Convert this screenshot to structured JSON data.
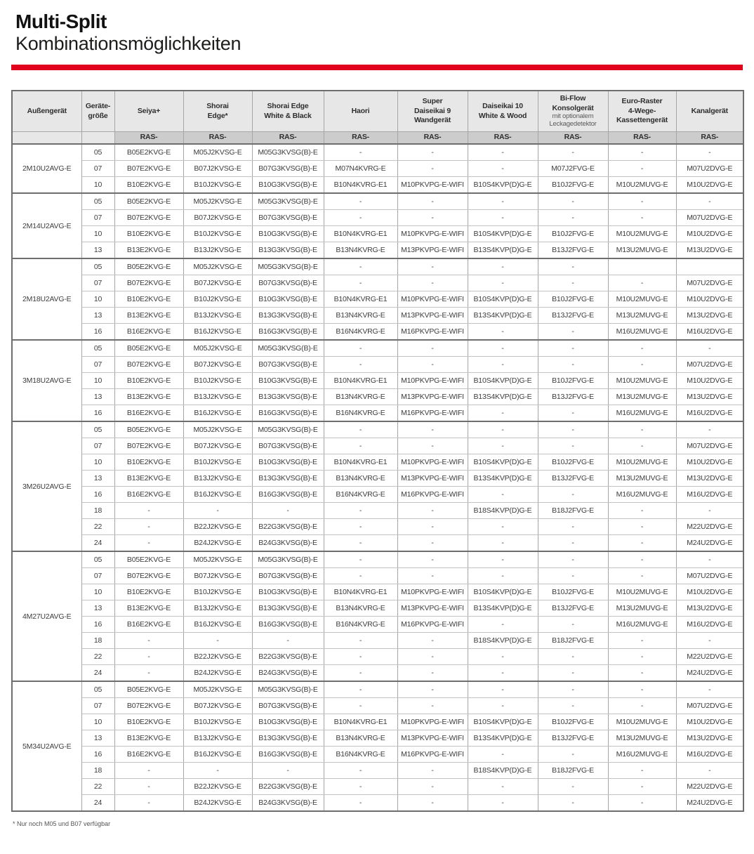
{
  "page": {
    "title": "Multi-Split",
    "subtitle": "Kombinationsmöglichkeiten",
    "footnote": "* Nur noch M05 und B07 verfügbar",
    "accent_color": "#e2001a",
    "header_bg": "#e7e7e7",
    "subheader_bg": "#cccccc"
  },
  "table": {
    "columns": [
      {
        "label": "Außengerät",
        "sub": ""
      },
      {
        "label": "Geräte-\ngröße",
        "sub": ""
      },
      {
        "label": "Seiya+",
        "sub": "RAS-"
      },
      {
        "label": "Shorai\nEdge*",
        "sub": "RAS-"
      },
      {
        "label": "Shorai Edge\nWhite & Black",
        "sub": "RAS-"
      },
      {
        "label": "Haori",
        "sub": "RAS-"
      },
      {
        "label": "Super\nDaiseikai 9\nWandgerät",
        "sub": "RAS-"
      },
      {
        "label": "Daiseikai 10\nWhite & Wood",
        "sub": "RAS-"
      },
      {
        "label": "Bi-Flow\nKonsolgerät",
        "note": "mit optionalem\nLeckagedetektor",
        "sub": "RAS-"
      },
      {
        "label": "Euro-Raster\n4-Wege-\nKassettengerät",
        "sub": "RAS-"
      },
      {
        "label": "Kanalgerät",
        "sub": "RAS-"
      }
    ],
    "groups": [
      {
        "outdoor_unit": "2M10U2AVG-E",
        "rows": [
          {
            "size": "05",
            "cells": [
              "B05E2KVG-E",
              "M05J2KVSG-E",
              "M05G3KVSG(B)-E",
              "-",
              "-",
              "-",
              "-",
              "-",
              "-"
            ]
          },
          {
            "size": "07",
            "cells": [
              "B07E2KVG-E",
              "B07J2KVSG-E",
              "B07G3KVSG(B)-E",
              "M07N4KVRG-E",
              "-",
              "-",
              "M07J2FVG-E",
              "-",
              "M07U2DVG-E"
            ]
          },
          {
            "size": "10",
            "cells": [
              "B10E2KVG-E",
              "B10J2KVSG-E",
              "B10G3KVSG(B)-E",
              "B10N4KVRG-E1",
              "M10PKVPG-E-WIFI",
              "B10S4KVP(D)G-E",
              "B10J2FVG-E",
              "M10U2MUVG-E",
              "M10U2DVG-E"
            ]
          }
        ]
      },
      {
        "outdoor_unit": "2M14U2AVG-E",
        "rows": [
          {
            "size": "05",
            "cells": [
              "B05E2KVG-E",
              "M05J2KVSG-E",
              "M05G3KVSG(B)-E",
              "-",
              "-",
              "-",
              "-",
              "-",
              "-"
            ]
          },
          {
            "size": "07",
            "cells": [
              "B07E2KVG-E",
              "B07J2KVSG-E",
              "B07G3KVSG(B)-E",
              "-",
              "-",
              "-",
              "-",
              "-",
              "M07U2DVG-E"
            ]
          },
          {
            "size": "10",
            "cells": [
              "B10E2KVG-E",
              "B10J2KVSG-E",
              "B10G3KVSG(B)-E",
              "B10N4KVRG-E1",
              "M10PKVPG-E-WIFI",
              "B10S4KVP(D)G-E",
              "B10J2FVG-E",
              "M10U2MUVG-E",
              "M10U2DVG-E"
            ]
          },
          {
            "size": "13",
            "cells": [
              "B13E2KVG-E",
              "B13J2KVSG-E",
              "B13G3KVSG(B)-E",
              "B13N4KVRG-E",
              "M13PKVPG-E-WIFI",
              "B13S4KVP(D)G-E",
              "B13J2FVG-E",
              "M13U2MUVG-E",
              "M13U2DVG-E"
            ]
          }
        ]
      },
      {
        "outdoor_unit": "2M18U2AVG-E",
        "rows": [
          {
            "size": "05",
            "cells": [
              "B05E2KVG-E",
              "M05J2KVSG-E",
              "M05G3KVSG(B)-E",
              "-",
              "-",
              "-",
              "-",
              "",
              ""
            ]
          },
          {
            "size": "07",
            "cells": [
              "B07E2KVG-E",
              "B07J2KVSG-E",
              "B07G3KVSG(B)-E",
              "-",
              "-",
              "-",
              "-",
              "-",
              "M07U2DVG-E"
            ]
          },
          {
            "size": "10",
            "cells": [
              "B10E2KVG-E",
              "B10J2KVSG-E",
              "B10G3KVSG(B)-E",
              "B10N4KVRG-E1",
              "M10PKVPG-E-WIFI",
              "B10S4KVP(D)G-E",
              "B10J2FVG-E",
              "M10U2MUVG-E",
              "M10U2DVG-E"
            ]
          },
          {
            "size": "13",
            "cells": [
              "B13E2KVG-E",
              "B13J2KVSG-E",
              "B13G3KVSG(B)-E",
              "B13N4KVRG-E",
              "M13PKVPG-E-WIFI",
              "B13S4KVP(D)G-E",
              "B13J2FVG-E",
              "M13U2MUVG-E",
              "M13U2DVG-E"
            ]
          },
          {
            "size": "16",
            "cells": [
              "B16E2KVG-E",
              "B16J2KVSG-E",
              "B16G3KVSG(B)-E",
              "B16N4KVRG-E",
              "M16PKVPG-E-WIFI",
              "-",
              "-",
              "M16U2MUVG-E",
              "M16U2DVG-E"
            ]
          }
        ]
      },
      {
        "outdoor_unit": "3M18U2AVG-E",
        "rows": [
          {
            "size": "05",
            "cells": [
              "B05E2KVG-E",
              "M05J2KVSG-E",
              "M05G3KVSG(B)-E",
              "-",
              "-",
              "-",
              "-",
              "-",
              "-"
            ]
          },
          {
            "size": "07",
            "cells": [
              "B07E2KVG-E",
              "B07J2KVSG-E",
              "B07G3KVSG(B)-E",
              "-",
              "-",
              "-",
              "-",
              "-",
              "M07U2DVG-E"
            ]
          },
          {
            "size": "10",
            "cells": [
              "B10E2KVG-E",
              "B10J2KVSG-E",
              "B10G3KVSG(B)-E",
              "B10N4KVRG-E1",
              "M10PKVPG-E-WIFI",
              "B10S4KVP(D)G-E",
              "B10J2FVG-E",
              "M10U2MUVG-E",
              "M10U2DVG-E"
            ]
          },
          {
            "size": "13",
            "cells": [
              "B13E2KVG-E",
              "B13J2KVSG-E",
              "B13G3KVSG(B)-E",
              "B13N4KVRG-E",
              "M13PKVPG-E-WIFI",
              "B13S4KVP(D)G-E",
              "B13J2FVG-E",
              "M13U2MUVG-E",
              "M13U2DVG-E"
            ]
          },
          {
            "size": "16",
            "cells": [
              "B16E2KVG-E",
              "B16J2KVSG-E",
              "B16G3KVSG(B)-E",
              "B16N4KVRG-E",
              "M16PKVPG-E-WIFI",
              "-",
              "-",
              "M16U2MUVG-E",
              "M16U2DVG-E"
            ]
          }
        ]
      },
      {
        "outdoor_unit": "3M26U2AVG-E",
        "rows": [
          {
            "size": "05",
            "cells": [
              "B05E2KVG-E",
              "M05J2KVSG-E",
              "M05G3KVSG(B)-E",
              "-",
              "-",
              "-",
              "-",
              "-",
              "-"
            ]
          },
          {
            "size": "07",
            "cells": [
              "B07E2KVG-E",
              "B07J2KVSG-E",
              "B07G3KVSG(B)-E",
              "-",
              "-",
              "-",
              "-",
              "-",
              "M07U2DVG-E"
            ]
          },
          {
            "size": "10",
            "cells": [
              "B10E2KVG-E",
              "B10J2KVSG-E",
              "B10G3KVSG(B)-E",
              "B10N4KVRG-E1",
              "M10PKVPG-E-WIFI",
              "B10S4KVP(D)G-E",
              "B10J2FVG-E",
              "M10U2MUVG-E",
              "M10U2DVG-E"
            ]
          },
          {
            "size": "13",
            "cells": [
              "B13E2KVG-E",
              "B13J2KVSG-E",
              "B13G3KVSG(B)-E",
              "B13N4KVRG-E",
              "M13PKVPG-E-WIFI",
              "B13S4KVP(D)G-E",
              "B13J2FVG-E",
              "M13U2MUVG-E",
              "M13U2DVG-E"
            ]
          },
          {
            "size": "16",
            "cells": [
              "B16E2KVG-E",
              "B16J2KVSG-E",
              "B16G3KVSG(B)-E",
              "B16N4KVRG-E",
              "M16PKVPG-E-WIFI",
              "-",
              "-",
              "M16U2MUVG-E",
              "M16U2DVG-E"
            ]
          },
          {
            "size": "18",
            "cells": [
              "-",
              "-",
              "-",
              "-",
              "-",
              "B18S4KVP(D)G-E",
              "B18J2FVG-E",
              "-",
              "-"
            ]
          },
          {
            "size": "22",
            "cells": [
              "-",
              "B22J2KVSG-E",
              "B22G3KVSG(B)-E",
              "-",
              "-",
              "-",
              "-",
              "-",
              "M22U2DVG-E"
            ]
          },
          {
            "size": "24",
            "cells": [
              "-",
              "B24J2KVSG-E",
              "B24G3KVSG(B)-E",
              "-",
              "-",
              "-",
              "-",
              "-",
              "M24U2DVG-E"
            ]
          }
        ]
      },
      {
        "outdoor_unit": "4M27U2AVG-E",
        "rows": [
          {
            "size": "05",
            "cells": [
              "B05E2KVG-E",
              "M05J2KVSG-E",
              "M05G3KVSG(B)-E",
              "-",
              "-",
              "-",
              "-",
              "-",
              "-"
            ]
          },
          {
            "size": "07",
            "cells": [
              "B07E2KVG-E",
              "B07J2KVSG-E",
              "B07G3KVSG(B)-E",
              "-",
              "-",
              "-",
              "-",
              "-",
              "M07U2DVG-E"
            ]
          },
          {
            "size": "10",
            "cells": [
              "B10E2KVG-E",
              "B10J2KVSG-E",
              "B10G3KVSG(B)-E",
              "B10N4KVRG-E1",
              "M10PKVPG-E-WIFI",
              "B10S4KVP(D)G-E",
              "B10J2FVG-E",
              "M10U2MUVG-E",
              "M10U2DVG-E"
            ]
          },
          {
            "size": "13",
            "cells": [
              "B13E2KVG-E",
              "B13J2KVSG-E",
              "B13G3KVSG(B)-E",
              "B13N4KVRG-E",
              "M13PKVPG-E-WIFI",
              "B13S4KVP(D)G-E",
              "B13J2FVG-E",
              "M13U2MUVG-E",
              "M13U2DVG-E"
            ]
          },
          {
            "size": "16",
            "cells": [
              "B16E2KVG-E",
              "B16J2KVSG-E",
              "B16G3KVSG(B)-E",
              "B16N4KVRG-E",
              "M16PKVPG-E-WIFI",
              "-",
              "-",
              "M16U2MUVG-E",
              "M16U2DVG-E"
            ]
          },
          {
            "size": "18",
            "cells": [
              "-",
              "-",
              "-",
              "-",
              "-",
              "B18S4KVP(D)G-E",
              "B18J2FVG-E",
              "-",
              "-"
            ]
          },
          {
            "size": "22",
            "cells": [
              "-",
              "B22J2KVSG-E",
              "B22G3KVSG(B)-E",
              "-",
              "-",
              "-",
              "-",
              "-",
              "M22U2DVG-E"
            ]
          },
          {
            "size": "24",
            "cells": [
              "-",
              "B24J2KVSG-E",
              "B24G3KVSG(B)-E",
              "-",
              "-",
              "-",
              "-",
              "-",
              "M24U2DVG-E"
            ]
          }
        ]
      },
      {
        "outdoor_unit": "5M34U2AVG-E",
        "rows": [
          {
            "size": "05",
            "cells": [
              "B05E2KVG-E",
              "M05J2KVSG-E",
              "M05G3KVSG(B)-E",
              "-",
              "-",
              "-",
              "-",
              "-",
              "-"
            ]
          },
          {
            "size": "07",
            "cells": [
              "B07E2KVG-E",
              "B07J2KVSG-E",
              "B07G3KVSG(B)-E",
              "-",
              "-",
              "-",
              "-",
              "-",
              "M07U2DVG-E"
            ]
          },
          {
            "size": "10",
            "cells": [
              "B10E2KVG-E",
              "B10J2KVSG-E",
              "B10G3KVSG(B)-E",
              "B10N4KVRG-E1",
              "M10PKVPG-E-WIFI",
              "B10S4KVP(D)G-E",
              "B10J2FVG-E",
              "M10U2MUVG-E",
              "M10U2DVG-E"
            ]
          },
          {
            "size": "13",
            "cells": [
              "B13E2KVG-E",
              "B13J2KVSG-E",
              "B13G3KVSG(B)-E",
              "B13N4KVRG-E",
              "M13PKVPG-E-WIFI",
              "B13S4KVP(D)G-E",
              "B13J2FVG-E",
              "M13U2MUVG-E",
              "M13U2DVG-E"
            ]
          },
          {
            "size": "16",
            "cells": [
              "B16E2KVG-E",
              "B16J2KVSG-E",
              "B16G3KVSG(B)-E",
              "B16N4KVRG-E",
              "M16PKVPG-E-WIFI",
              "-",
              "-",
              "M16U2MUVG-E",
              "M16U2DVG-E"
            ]
          },
          {
            "size": "18",
            "cells": [
              "-",
              "-",
              "-",
              "-",
              "-",
              "B18S4KVP(D)G-E",
              "B18J2FVG-E",
              "-",
              "-"
            ]
          },
          {
            "size": "22",
            "cells": [
              "-",
              "B22J2KVSG-E",
              "B22G3KVSG(B)-E",
              "-",
              "-",
              "-",
              "-",
              "-",
              "M22U2DVG-E"
            ]
          },
          {
            "size": "24",
            "cells": [
              "-",
              "B24J2KVSG-E",
              "B24G3KVSG(B)-E",
              "-",
              "-",
              "-",
              "-",
              "-",
              "M24U2DVG-E"
            ]
          }
        ]
      }
    ]
  }
}
